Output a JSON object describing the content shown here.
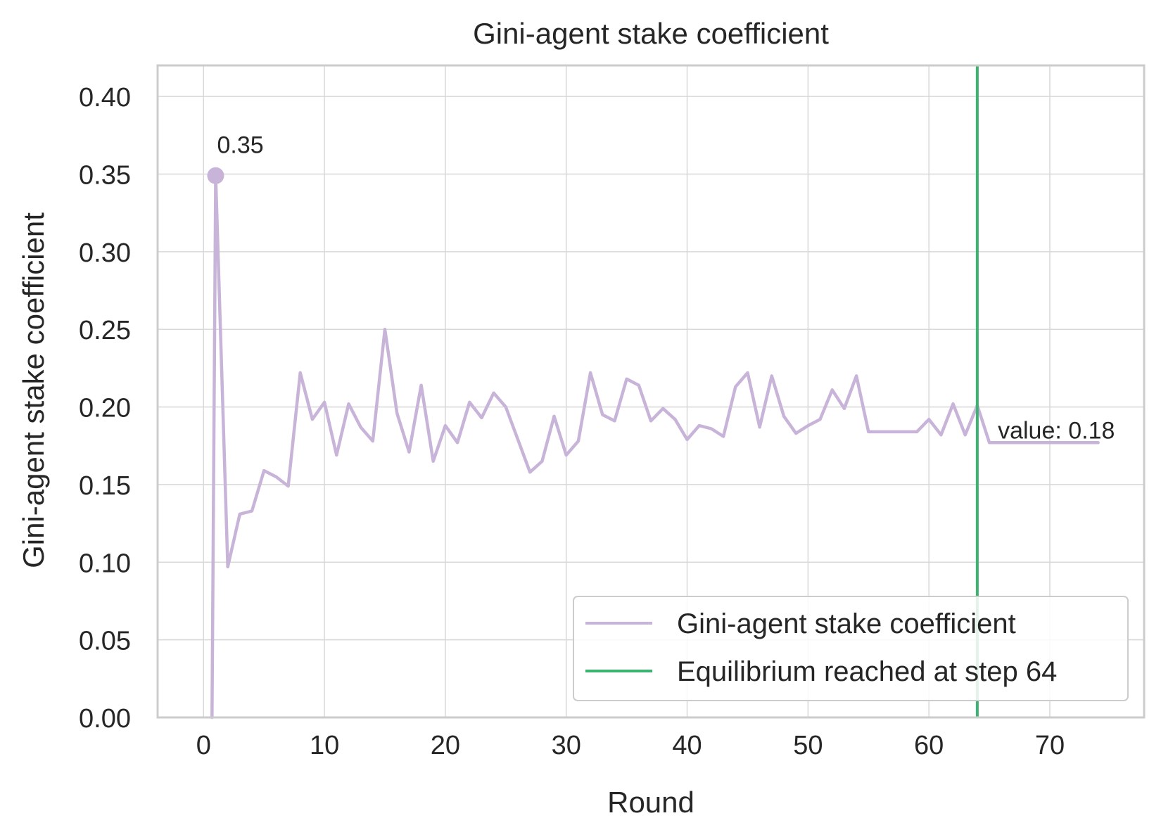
{
  "chart_data": {
    "type": "line",
    "title": "Gini-agent stake coefficient",
    "xlabel": "Round",
    "ylabel": "Gini-agent stake coefficient",
    "xlim": [
      -3.8,
      77.8
    ],
    "ylim": [
      0.0,
      0.42
    ],
    "x_ticks": [
      0,
      10,
      20,
      30,
      40,
      50,
      60,
      70
    ],
    "y_ticks": [
      0.0,
      0.05,
      0.1,
      0.15,
      0.2,
      0.25,
      0.3,
      0.35,
      0.4
    ],
    "x_tick_labels": [
      "0",
      "10",
      "20",
      "30",
      "40",
      "50",
      "60",
      "70"
    ],
    "y_tick_labels": [
      "0.00",
      "0.05",
      "0.10",
      "0.15",
      "0.20",
      "0.25",
      "0.30",
      "0.35",
      "0.40"
    ],
    "grid": true,
    "legend_position": "lower-right",
    "series": [
      {
        "name": "Gini-agent stake coefficient",
        "color": "#c8b4d8",
        "x": [
          0.7,
          1,
          2,
          3,
          4,
          5,
          6,
          7,
          8,
          9,
          10,
          11,
          12,
          13,
          14,
          15,
          16,
          17,
          18,
          19,
          20,
          21,
          22,
          23,
          24,
          25,
          26,
          27,
          28,
          29,
          30,
          31,
          32,
          33,
          34,
          35,
          36,
          37,
          38,
          39,
          40,
          41,
          42,
          43,
          44,
          45,
          46,
          47,
          48,
          49,
          50,
          51,
          52,
          53,
          54,
          55,
          56,
          57,
          58,
          59,
          60,
          61,
          62,
          63,
          64,
          65,
          66,
          67,
          68,
          69,
          70,
          71,
          72,
          73,
          74
        ],
        "y": [
          0.0,
          0.349,
          0.097,
          0.131,
          0.133,
          0.159,
          0.155,
          0.149,
          0.222,
          0.192,
          0.203,
          0.169,
          0.202,
          0.187,
          0.178,
          0.25,
          0.196,
          0.171,
          0.214,
          0.165,
          0.188,
          0.177,
          0.203,
          0.193,
          0.209,
          0.2,
          0.179,
          0.158,
          0.165,
          0.194,
          0.169,
          0.178,
          0.222,
          0.195,
          0.191,
          0.218,
          0.214,
          0.191,
          0.199,
          0.192,
          0.179,
          0.188,
          0.186,
          0.181,
          0.213,
          0.222,
          0.187,
          0.22,
          0.194,
          0.183,
          0.188,
          0.192,
          0.211,
          0.199,
          0.22,
          0.184,
          0.184,
          0.184,
          0.184,
          0.184,
          0.192,
          0.182,
          0.202,
          0.182,
          0.201,
          0.177,
          0.177,
          0.177,
          0.177,
          0.177,
          0.177,
          0.177,
          0.177,
          0.177,
          0.177
        ]
      }
    ],
    "vlines": [
      {
        "name": "Equilibrium reached at step 64",
        "x": 64,
        "color": "#3cb371"
      }
    ],
    "annotations": [
      {
        "text": "0.35",
        "x": 1,
        "y": 0.349,
        "marker": true
      },
      {
        "text": "value: 0.18",
        "x": 65.7,
        "y": 0.18
      }
    ]
  }
}
